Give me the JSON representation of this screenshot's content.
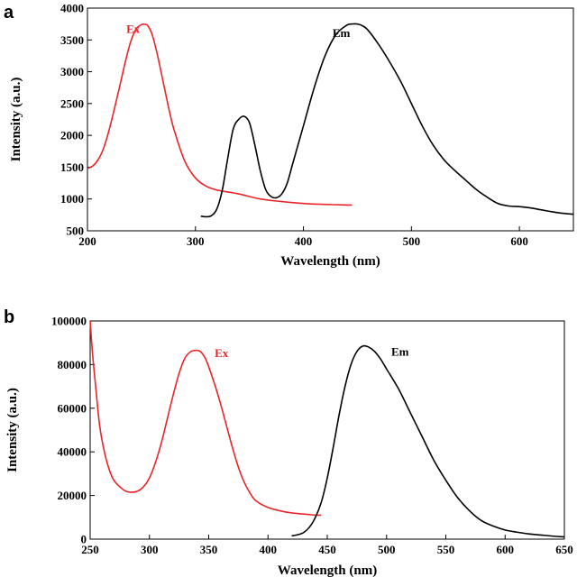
{
  "chart_data": [
    {
      "panel_label": "a",
      "type": "line",
      "xlabel": "Wavelength (nm)",
      "ylabel": "Intensity (a.u.)",
      "xlim": [
        200,
        650
      ],
      "ylim": [
        500,
        4000
      ],
      "xticks": [
        200,
        300,
        400,
        500,
        600
      ],
      "yticks": [
        500,
        1000,
        1500,
        2000,
        2500,
        3000,
        3500,
        4000
      ],
      "grid": false,
      "series": [
        {
          "name": "Ex",
          "color": "#e8262a",
          "label_at": [
            236,
            3610
          ],
          "x": [
            200,
            205,
            210,
            215,
            220,
            225,
            230,
            235,
            240,
            245,
            250,
            253,
            256,
            260,
            265,
            270,
            275,
            280,
            290,
            300,
            310,
            320,
            340,
            360,
            380,
            400,
            420,
            440,
            445
          ],
          "y": [
            1480,
            1520,
            1620,
            1800,
            2080,
            2420,
            2780,
            3150,
            3470,
            3670,
            3740,
            3745,
            3720,
            3580,
            3250,
            2850,
            2450,
            2100,
            1600,
            1330,
            1200,
            1140,
            1080,
            1000,
            960,
            930,
            915,
            905,
            905
          ]
        },
        {
          "name": "Em",
          "color": "#000000",
          "label_at": [
            427,
            3550
          ],
          "x": [
            305,
            310,
            315,
            320,
            325,
            330,
            335,
            340,
            345,
            350,
            355,
            360,
            365,
            370,
            375,
            380,
            385,
            390,
            400,
            410,
            420,
            430,
            440,
            445,
            450,
            455,
            460,
            470,
            480,
            490,
            500,
            510,
            520,
            530,
            540,
            550,
            560,
            570,
            580,
            590,
            600,
            610,
            620,
            630,
            640,
            650
          ],
          "y": [
            730,
            720,
            740,
            850,
            1150,
            1650,
            2100,
            2250,
            2300,
            2200,
            1850,
            1450,
            1150,
            1040,
            1020,
            1080,
            1250,
            1550,
            2150,
            2750,
            3250,
            3580,
            3730,
            3750,
            3750,
            3720,
            3650,
            3420,
            3150,
            2850,
            2500,
            2150,
            1850,
            1620,
            1450,
            1300,
            1150,
            1030,
            930,
            890,
            880,
            860,
            830,
            800,
            775,
            760
          ]
        }
      ]
    },
    {
      "panel_label": "b",
      "type": "line",
      "xlabel": "Wavelength (nm)",
      "ylabel": "Intensity (a.u.)",
      "xlim": [
        250,
        650
      ],
      "ylim": [
        0,
        100000
      ],
      "xticks": [
        250,
        300,
        350,
        400,
        450,
        500,
        550,
        600,
        650
      ],
      "yticks": [
        0,
        20000,
        40000,
        60000,
        80000,
        100000
      ],
      "grid": false,
      "series": [
        {
          "name": "Ex",
          "color": "#e8262a",
          "label_at": [
            355,
            83500
          ],
          "x": [
            250,
            252,
            255,
            258,
            262,
            266,
            270,
            275,
            280,
            285,
            290,
            295,
            300,
            305,
            310,
            315,
            320,
            325,
            330,
            335,
            340,
            343,
            347,
            350,
            355,
            360,
            365,
            370,
            375,
            380,
            385,
            390,
            400,
            410,
            420,
            430,
            440,
            445
          ],
          "y": [
            100000,
            85000,
            68000,
            52000,
            40000,
            32000,
            27000,
            24000,
            22000,
            21500,
            22000,
            24000,
            28000,
            35000,
            44000,
            55000,
            66000,
            76000,
            83000,
            86000,
            86500,
            86000,
            83000,
            79000,
            71000,
            62000,
            52000,
            42000,
            33000,
            26000,
            21000,
            17500,
            14500,
            13000,
            12000,
            11500,
            11000,
            11000
          ]
        },
        {
          "name": "Em",
          "color": "#000000",
          "label_at": [
            504,
            84000
          ],
          "x": [
            420,
            425,
            430,
            435,
            440,
            445,
            450,
            455,
            460,
            465,
            470,
            475,
            480,
            485,
            490,
            495,
            500,
            510,
            520,
            530,
            540,
            550,
            560,
            570,
            580,
            590,
            600,
            610,
            620,
            630,
            640,
            650
          ],
          "y": [
            1500,
            2000,
            3000,
            5500,
            10000,
            17000,
            28000,
            42000,
            57000,
            70000,
            80000,
            86000,
            88500,
            88000,
            86000,
            82500,
            78000,
            69000,
            58000,
            47000,
            36000,
            27000,
            19000,
            13000,
            8500,
            6000,
            4200,
            3200,
            2400,
            1900,
            1400,
            1000
          ]
        }
      ]
    }
  ]
}
